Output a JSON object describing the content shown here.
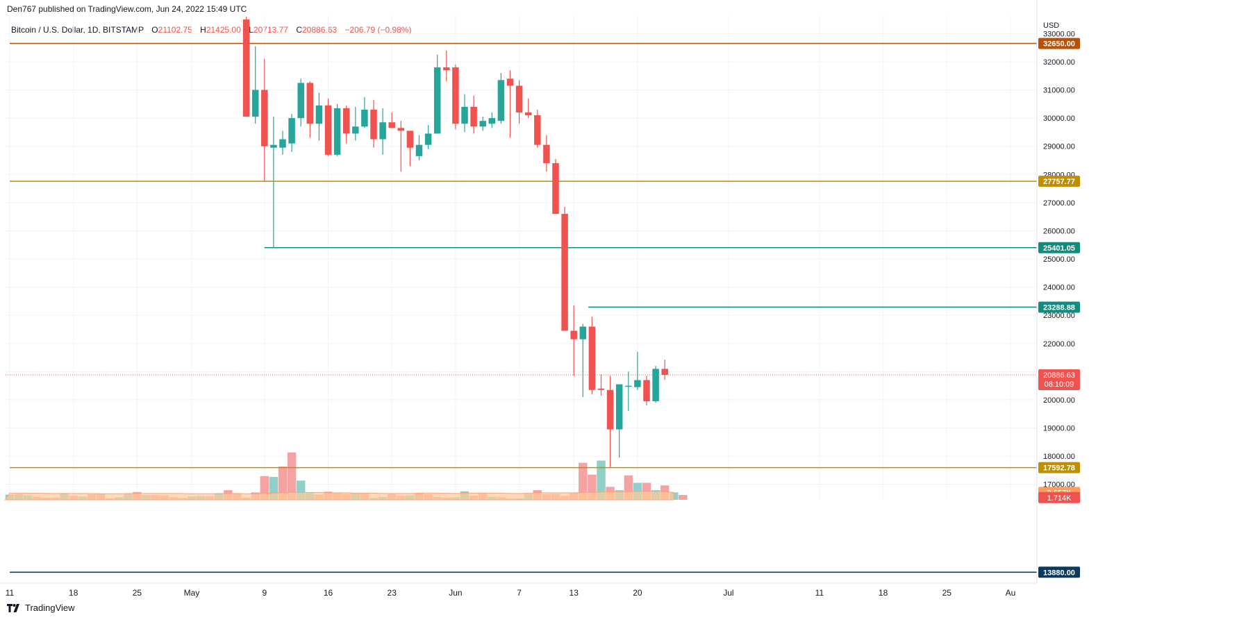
{
  "header": {
    "published": "Den767 published on TradingView.com, Jun 24, 2022 15:49 UTC",
    "symbol": "Bitcoin / U.S. Dollar, 1D, BITSTAMP",
    "ohlc": {
      "o_label": "O",
      "o": "21102.75",
      "h_label": "H",
      "h": "21425.00",
      "l_label": "L",
      "l": "20713.77",
      "c_label": "C",
      "c": "20886.63",
      "change": "−206.79 (−0.98%)"
    }
  },
  "footer": {
    "brand": "TradingView",
    "logo_icon": "tradingview-logo-icon"
  },
  "colors": {
    "up": "#26a69a",
    "down": "#ef5350",
    "vol_up": "#8fd0c8",
    "vol_down": "#f5a3a2",
    "ma_fill": "#ffcc99",
    "grid": "#f0f3fa",
    "level_brown": "#b45309",
    "level_gold": "#bf8f00",
    "level_teal": "#128c7e",
    "level_navy": "#0d3a5c"
  },
  "chart_data": {
    "type": "candlestick",
    "currency_label": "USD",
    "ylim": [
      16450,
      33650
    ],
    "y_ticks": [
      17000,
      18000,
      19000,
      20000,
      21000,
      22000,
      23000,
      24000,
      25000,
      26000,
      27000,
      28000,
      29000,
      30000,
      31000,
      32000,
      33000
    ],
    "y_tick_labels": [
      "17000.00",
      "18000.00",
      "19000.00",
      "20000.00",
      "21000.00",
      "22000.00",
      "23000.00",
      "24000.00",
      "25000.00",
      "26000.00",
      "27000.00",
      "28000.00",
      "29000.00",
      "30000.00",
      "31000.00",
      "32000.00",
      "33000.00"
    ],
    "x_axis": {
      "tick_labels": [
        "11",
        "18",
        "25",
        "May",
        "9",
        "16",
        "23",
        "Jun",
        "7",
        "13",
        "20",
        "Jul",
        "11",
        "18",
        "25",
        "Au"
      ],
      "tick_day_offsets": [
        0,
        7,
        14,
        20,
        28,
        35,
        42,
        49,
        56,
        62,
        69,
        79,
        89,
        96,
        103,
        110
      ]
    },
    "candles_start_day_offset": 26,
    "candles": [
      {
        "o": 33500,
        "h": 33600,
        "l": 30050,
        "c": 30050
      },
      {
        "o": 30050,
        "h": 32550,
        "l": 29800,
        "c": 31000
      },
      {
        "o": 31000,
        "h": 32100,
        "l": 27750,
        "c": 29000
      },
      {
        "o": 28950,
        "h": 30050,
        "l": 25400,
        "c": 29050
      },
      {
        "o": 28950,
        "h": 29550,
        "l": 28700,
        "c": 29250
      },
      {
        "o": 29100,
        "h": 30150,
        "l": 28800,
        "c": 30000
      },
      {
        "o": 30000,
        "h": 31400,
        "l": 29700,
        "c": 31250
      },
      {
        "o": 31250,
        "h": 31300,
        "l": 29300,
        "c": 29800
      },
      {
        "o": 29800,
        "h": 30900,
        "l": 29200,
        "c": 30450
      },
      {
        "o": 30450,
        "h": 30700,
        "l": 28650,
        "c": 28700
      },
      {
        "o": 28700,
        "h": 30500,
        "l": 28650,
        "c": 30350
      },
      {
        "o": 30350,
        "h": 30450,
        "l": 29100,
        "c": 29450
      },
      {
        "o": 29450,
        "h": 30400,
        "l": 29200,
        "c": 29700
      },
      {
        "o": 29700,
        "h": 30750,
        "l": 29650,
        "c": 30300
      },
      {
        "o": 30300,
        "h": 30650,
        "l": 28950,
        "c": 29250
      },
      {
        "o": 29250,
        "h": 30350,
        "l": 28700,
        "c": 29850
      },
      {
        "o": 29850,
        "h": 30200,
        "l": 29650,
        "c": 29650
      },
      {
        "o": 29650,
        "h": 29900,
        "l": 28100,
        "c": 29550
      },
      {
        "o": 29550,
        "h": 29550,
        "l": 28300,
        "c": 28950
      },
      {
        "o": 28650,
        "h": 29400,
        "l": 28500,
        "c": 29050
      },
      {
        "o": 29050,
        "h": 29750,
        "l": 28900,
        "c": 29450
      },
      {
        "o": 29450,
        "h": 32250,
        "l": 29450,
        "c": 31800
      },
      {
        "o": 31800,
        "h": 32400,
        "l": 31300,
        "c": 31700
      },
      {
        "o": 31800,
        "h": 31900,
        "l": 29600,
        "c": 29800
      },
      {
        "o": 29800,
        "h": 30850,
        "l": 29500,
        "c": 30400
      },
      {
        "o": 30400,
        "h": 30800,
        "l": 29450,
        "c": 29700
      },
      {
        "o": 29700,
        "h": 30050,
        "l": 29550,
        "c": 29900
      },
      {
        "o": 29800,
        "h": 30200,
        "l": 29650,
        "c": 30000
      },
      {
        "o": 29900,
        "h": 31600,
        "l": 29800,
        "c": 31350
      },
      {
        "o": 31400,
        "h": 31700,
        "l": 29300,
        "c": 31150
      },
      {
        "o": 31150,
        "h": 31350,
        "l": 29800,
        "c": 30200
      },
      {
        "o": 30200,
        "h": 30700,
        "l": 30000,
        "c": 30100
      },
      {
        "o": 30100,
        "h": 30300,
        "l": 28950,
        "c": 29050
      },
      {
        "o": 29050,
        "h": 29400,
        "l": 28100,
        "c": 28400
      },
      {
        "o": 28400,
        "h": 28550,
        "l": 26600,
        "c": 26600
      },
      {
        "o": 26600,
        "h": 26850,
        "l": 22500,
        "c": 22450
      },
      {
        "o": 22450,
        "h": 23350,
        "l": 20850,
        "c": 22150
      },
      {
        "o": 22150,
        "h": 22700,
        "l": 20100,
        "c": 22600
      },
      {
        "o": 22600,
        "h": 22950,
        "l": 20200,
        "c": 20350
      },
      {
        "o": 20400,
        "h": 20900,
        "l": 20150,
        "c": 20350
      },
      {
        "o": 20350,
        "h": 20850,
        "l": 17600,
        "c": 18950
      },
      {
        "o": 18950,
        "h": 20550,
        "l": 17950,
        "c": 20550
      },
      {
        "o": 20500,
        "h": 21000,
        "l": 19600,
        "c": 20500
      },
      {
        "o": 20450,
        "h": 21700,
        "l": 20350,
        "c": 20700
      },
      {
        "o": 20700,
        "h": 20850,
        "l": 19800,
        "c": 19950
      },
      {
        "o": 19950,
        "h": 21200,
        "l": 19900,
        "c": 21100
      },
      {
        "o": 21100,
        "h": 21425,
        "l": 20713.77,
        "c": 20886.63
      }
    ],
    "volume_axis_top_value": 16.4,
    "volume": [
      {
        "v": 0.7,
        "dir": "up"
      },
      {
        "v": 0.8,
        "dir": "up"
      },
      {
        "v": 0.6,
        "dir": "up"
      },
      {
        "v": 0.4,
        "dir": "down"
      },
      {
        "v": 0.3,
        "dir": "down"
      },
      {
        "v": 0.3,
        "dir": "down"
      },
      {
        "v": 0.9,
        "dir": "up"
      },
      {
        "v": 0.55,
        "dir": "down"
      },
      {
        "v": 0.45,
        "dir": "up"
      },
      {
        "v": 0.75,
        "dir": "down"
      },
      {
        "v": 0.8,
        "dir": "down"
      },
      {
        "v": 0.2,
        "dir": "down"
      },
      {
        "v": 0.35,
        "dir": "up"
      },
      {
        "v": 0.85,
        "dir": "up"
      },
      {
        "v": 1.05,
        "dir": "down"
      },
      {
        "v": 0.65,
        "dir": "up"
      },
      {
        "v": 0.65,
        "dir": "down"
      },
      {
        "v": 0.6,
        "dir": "down"
      },
      {
        "v": 0.35,
        "dir": "down"
      },
      {
        "v": 0.25,
        "dir": "down"
      },
      {
        "v": 0.45,
        "dir": "up"
      },
      {
        "v": 0.5,
        "dir": "up"
      },
      {
        "v": 0.5,
        "dir": "down"
      },
      {
        "v": 0.9,
        "dir": "up"
      },
      {
        "v": 1.3,
        "dir": "down"
      },
      {
        "v": 0.8,
        "dir": "down"
      },
      {
        "v": 0.3,
        "dir": "down"
      },
      {
        "v": 1.0,
        "dir": "down"
      },
      {
        "v": 3.2,
        "dir": "down"
      },
      {
        "v": 3.1,
        "dir": "up"
      },
      {
        "v": 4.5,
        "dir": "down"
      },
      {
        "v": 6.4,
        "dir": "down"
      },
      {
        "v": 2.6,
        "dir": "up"
      },
      {
        "v": 1.0,
        "dir": "up"
      },
      {
        "v": 0.7,
        "dir": "down"
      },
      {
        "v": 1.1,
        "dir": "down"
      },
      {
        "v": 0.9,
        "dir": "down"
      },
      {
        "v": 0.8,
        "dir": "down"
      },
      {
        "v": 0.9,
        "dir": "up"
      },
      {
        "v": 0.85,
        "dir": "down"
      },
      {
        "v": 0.25,
        "dir": "up"
      },
      {
        "v": 0.4,
        "dir": "up"
      },
      {
        "v": 0.8,
        "dir": "down"
      },
      {
        "v": 0.55,
        "dir": "down"
      },
      {
        "v": 0.6,
        "dir": "up"
      },
      {
        "v": 0.95,
        "dir": "down"
      },
      {
        "v": 0.75,
        "dir": "down"
      },
      {
        "v": 0.4,
        "dir": "down"
      },
      {
        "v": 0.3,
        "dir": "down"
      },
      {
        "v": 0.35,
        "dir": "up"
      },
      {
        "v": 1.15,
        "dir": "up"
      },
      {
        "v": 0.55,
        "dir": "down"
      },
      {
        "v": 0.95,
        "dir": "down"
      },
      {
        "v": 0.4,
        "dir": "up"
      },
      {
        "v": 0.35,
        "dir": "down"
      },
      {
        "v": 0.15,
        "dir": "down"
      },
      {
        "v": 0.2,
        "dir": "up"
      },
      {
        "v": 0.8,
        "dir": "up"
      },
      {
        "v": 1.3,
        "dir": "down"
      },
      {
        "v": 0.75,
        "dir": "down"
      },
      {
        "v": 0.8,
        "dir": "down"
      },
      {
        "v": 0.55,
        "dir": "down"
      },
      {
        "v": 0.95,
        "dir": "down"
      },
      {
        "v": 5.0,
        "dir": "down"
      },
      {
        "v": 3.4,
        "dir": "down"
      },
      {
        "v": 5.3,
        "dir": "up"
      },
      {
        "v": 1.75,
        "dir": "down"
      },
      {
        "v": 1.3,
        "dir": "up"
      },
      {
        "v": 3.3,
        "dir": "down"
      },
      {
        "v": 2.3,
        "dir": "up"
      },
      {
        "v": 2.3,
        "dir": "down"
      },
      {
        "v": 1.3,
        "dir": "up"
      },
      {
        "v": 1.95,
        "dir": "down"
      },
      {
        "v": 1.0,
        "dir": "up"
      },
      {
        "v": 0.65,
        "dir": "down"
      }
    ],
    "volume_ma": [
      0.9,
      0.9,
      0.9,
      0.88,
      0.88,
      0.85,
      0.85,
      0.85,
      0.85,
      0.85,
      0.82,
      0.82,
      0.82,
      0.85,
      0.85,
      0.85,
      0.85,
      0.85,
      0.85,
      0.85,
      0.82,
      0.82,
      0.82,
      0.82,
      0.85,
      0.85,
      0.82,
      0.8,
      0.85,
      0.9,
      0.95,
      1.0,
      1.0,
      1.0,
      1.0,
      0.95,
      0.95,
      0.95,
      0.9,
      0.9,
      0.9,
      0.85,
      0.85,
      0.85,
      0.85,
      0.9,
      0.9,
      0.9,
      0.88,
      0.85,
      0.9,
      0.9,
      0.9,
      0.9,
      0.9,
      0.85,
      0.85,
      0.9,
      0.95,
      0.95,
      0.95,
      0.95,
      0.95,
      1.0,
      1.0,
      1.05,
      1.1,
      1.1,
      1.1,
      1.15,
      1.15,
      1.15,
      1.1,
      1.0
    ],
    "volume_badges": [
      {
        "value": "2.657K",
        "color": "#ff9d5c",
        "at": 1.0
      },
      {
        "value": "1.714K",
        "color": "#ef5350",
        "at": 0.3
      }
    ],
    "horizontal_levels": [
      {
        "price": 32650.0,
        "label": "32650.00",
        "color": "#b45309",
        "from_day_offset": 0
      },
      {
        "price": 27757.77,
        "label": "27757.77",
        "color": "#bf8f00",
        "from_day_offset": 0
      },
      {
        "price": 25401.05,
        "label": "25401.05",
        "color": "#128c7e",
        "from_day_offset": 28
      },
      {
        "price": 23288.88,
        "label": "23288.88",
        "color": "#128c7e",
        "from_day_offset": 63.6
      },
      {
        "price": 17592.78,
        "label": "17592.78",
        "color": "#bf8f00",
        "from_day_offset": 0
      },
      {
        "price": 13880.0,
        "label": "13880.00",
        "color": "#0d3a5c",
        "from_day_offset": 0
      }
    ],
    "last_price": {
      "price": 20886.63,
      "label": "20886.63",
      "countdown": "08:10:09",
      "color": "#ef5350"
    },
    "grid": true
  }
}
